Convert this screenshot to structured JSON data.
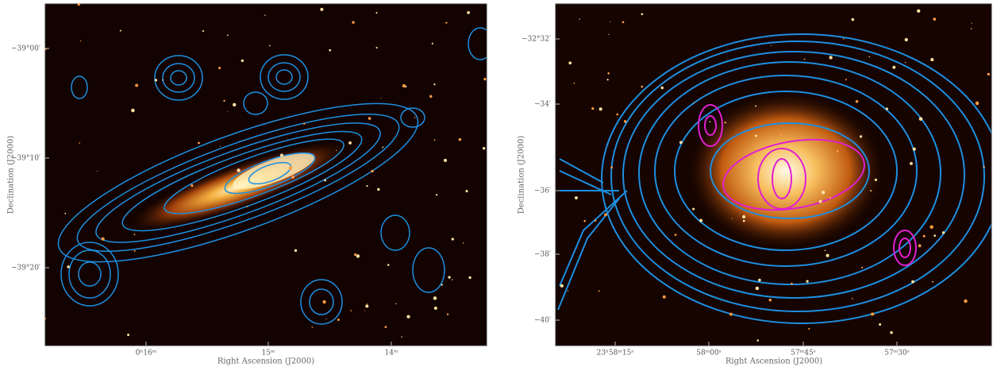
{
  "panels": [
    {
      "y_ticks": [
        "−39°00′",
        "−39°10′",
        "−39°20′"
      ],
      "x_ticks": [
        "0ʰ16ᵐ",
        "15ᵐ",
        "14ᵐ"
      ],
      "y_label": "Declination (J2000)",
      "x_label": "Right Ascension (J2000)"
    },
    {
      "y_ticks": [
        "−32°32′",
        "−34′",
        "−36′",
        "−38′",
        "−40′"
      ],
      "x_ticks": [
        "23ʰ58ᵐ15ˢ",
        "58ᵐ00ˢ",
        "57ᵐ45ˢ",
        "57ᵐ30ˢ"
      ],
      "y_label": "Declination (J2000)",
      "x_label": "Right Ascension (J2000)"
    }
  ]
}
